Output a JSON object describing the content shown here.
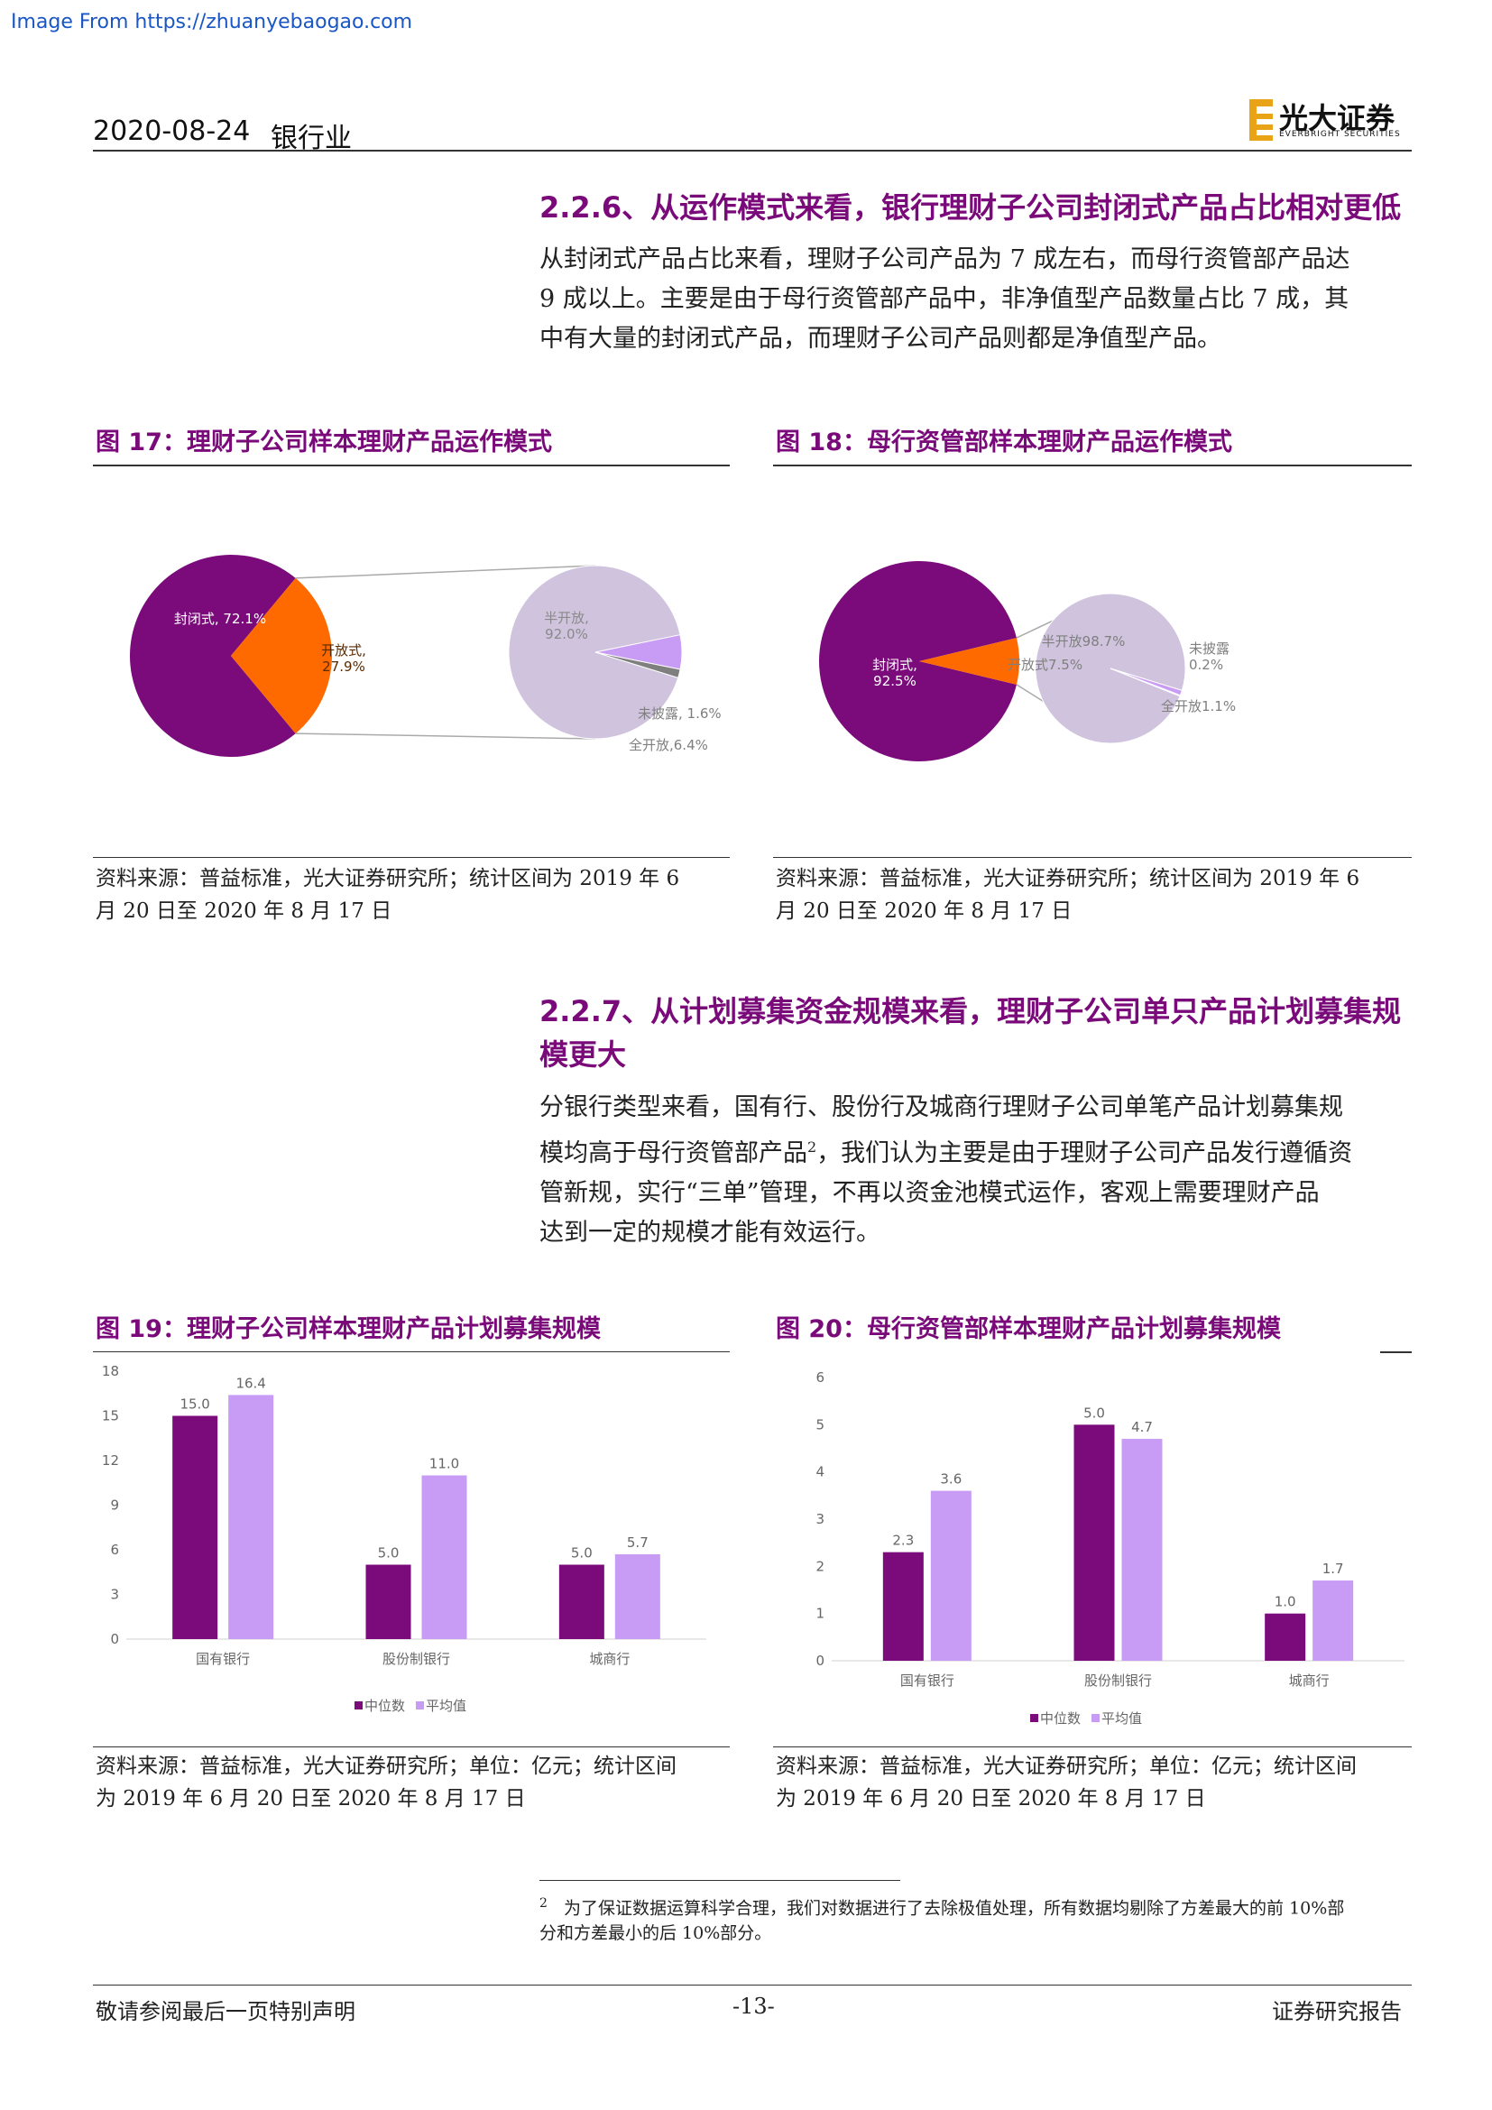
{
  "watermark": "Image From https://zhuanyebaogao.com",
  "header": {
    "date": "2020-08-24",
    "sector": "银行业",
    "logo_cn": "光大证券",
    "logo_en": "EVERBRIGHT SECURITIES"
  },
  "section1": {
    "title": "2.2.6、从运作模式来看，银行理财子公司封闭式产品占比相对更低",
    "body_lines": [
      "从封闭式产品占比来看，理财子公司产品为 7 成左右，而母行资管部产品达",
      "9 成以上。主要是由于母行资管部产品中，非净值型产品数量占比 7 成，其",
      "中有大量的封闭式产品，而理财子公司产品则都是净值型产品。"
    ]
  },
  "fig17": {
    "title": "图 17：理财子公司样本理财产品运作模式",
    "source_line1": "资料来源：普益标准，光大证券研究所；统计区间为 2019 年 6",
    "source_line2": "月 20 日至 2020 年 8 月 17 日"
  },
  "fig18": {
    "title": "图 18：母行资管部样本理财产品运作模式",
    "source_line1": "资料来源：普益标准，光大证券研究所；统计区间为 2019 年 6",
    "source_line2": "月 20 日至 2020 年 8 月 17 日"
  },
  "section2": {
    "title_line1": "2.2.7、从计划募集资金规模来看，理财子公司单只产品计划募集规",
    "title_line2": "模更大",
    "body_line1": "分银行类型来看，国有行、股份行及城商行理财子公司单笔产品计划募集规",
    "body_line2a": "模均高于母行资管部产品",
    "body_line2_sup": "2",
    "body_line2b": "，我们认为主要是由于理财子公司产品发行遵循资",
    "body_line3": "管新规，实行“三单”管理，不再以资金池模式运作，客观上需要理财产品",
    "body_line4": "达到一定的规模才能有效运行。"
  },
  "fig19": {
    "title": "图 19：理财子公司样本理财产品计划募集规模",
    "source_line1": "资料来源：普益标准，光大证券研究所；单位：亿元；统计区间",
    "source_line2": "为 2019 年 6 月 20 日至 2020 年 8 月 17 日"
  },
  "fig20": {
    "title": "图 20：母行资管部样本理财产品计划募集规模",
    "source_line1": "资料来源：普益标准，光大证券研究所；单位：亿元；统计区间",
    "source_line2": "为 2019 年 6 月 20 日至 2020 年 8 月 17 日"
  },
  "footnote": {
    "num": "2",
    "line1": "为了保证数据运算科学合理，我们对数据进行了去除极值处理，所有数据均剔除了方差最大的前 10%部",
    "line2": "分和方差最小的后 10%部分。"
  },
  "footer": {
    "left": "敬请参阅最后一页特别声明",
    "center": "-13-",
    "right": "证券研究报告"
  },
  "chart_data": [
    {
      "id": "fig17",
      "type": "pie",
      "title": "",
      "main": {
        "labels": [
          "封闭式",
          "开放式"
        ],
        "values": [
          72.1,
          27.9
        ],
        "label_texts": [
          "封闭式，72.1%",
          "开放式，27.9%"
        ],
        "colors": [
          "#7b0a7b",
          "#ff6a00"
        ]
      },
      "breakdown_of": "开放式",
      "sub": {
        "labels": [
          "半开放",
          "全开放",
          "未披露"
        ],
        "values": [
          92.0,
          6.4,
          1.6
        ],
        "label_texts": [
          "半开放，92.0%",
          "全开放，6.4%",
          "未披露，1.6%"
        ],
        "colors": [
          "#cfc3dd",
          "#c89cf4",
          "#7f7f7f"
        ]
      }
    },
    {
      "id": "fig18",
      "type": "pie",
      "title": "",
      "main": {
        "labels": [
          "封闭式",
          "开放式"
        ],
        "values": [
          92.5,
          7.5
        ],
        "label_texts": [
          "封闭式，92.5%",
          "开放式7.5%"
        ],
        "colors": [
          "#7b0a7b",
          "#ff6a00"
        ]
      },
      "breakdown_of": "开放式",
      "sub": {
        "labels": [
          "半开放",
          "全开放",
          "未披露"
        ],
        "values": [
          98.7,
          1.1,
          0.2
        ],
        "label_texts": [
          "半开放98.7%",
          "全开放1.1%",
          "未披露 0.2%"
        ],
        "colors": [
          "#cfc3dd",
          "#c89cf4",
          "#7f7f7f"
        ]
      }
    },
    {
      "id": "fig19",
      "type": "bar",
      "title": "",
      "categories": [
        "国有银行",
        "股份制银行",
        "城商行"
      ],
      "series": [
        {
          "name": "中位数",
          "values": [
            15.0,
            5.0,
            5.0
          ],
          "labels": [
            "15.0",
            "5.0",
            "5.0"
          ],
          "color": "#7b0a7b"
        },
        {
          "name": "平均值",
          "values": [
            16.4,
            11.0,
            5.7
          ],
          "labels": [
            "16.4",
            "11.0",
            "5.7"
          ],
          "color": "#c89cf4"
        }
      ],
      "ylim": [
        0,
        18
      ],
      "yticks": [
        "0",
        "3",
        "6",
        "9",
        "12",
        "15",
        "18"
      ],
      "legend": "bottom"
    },
    {
      "id": "fig20",
      "type": "bar",
      "title": "",
      "categories": [
        "国有银行",
        "股份制银行",
        "城商行"
      ],
      "series": [
        {
          "name": "中位数",
          "values": [
            2.3,
            5.0,
            1.0
          ],
          "labels": [
            "2.3",
            "5.0",
            "1.0"
          ],
          "color": "#7b0a7b"
        },
        {
          "name": "平均值",
          "values": [
            3.6,
            4.7,
            1.7
          ],
          "labels": [
            "3.6",
            "4.7",
            "1.7"
          ],
          "color": "#c89cf4"
        }
      ],
      "ylim": [
        0,
        6
      ],
      "yticks": [
        "0",
        "1",
        "2",
        "3",
        "4",
        "5",
        "6"
      ],
      "legend": "bottom"
    }
  ]
}
